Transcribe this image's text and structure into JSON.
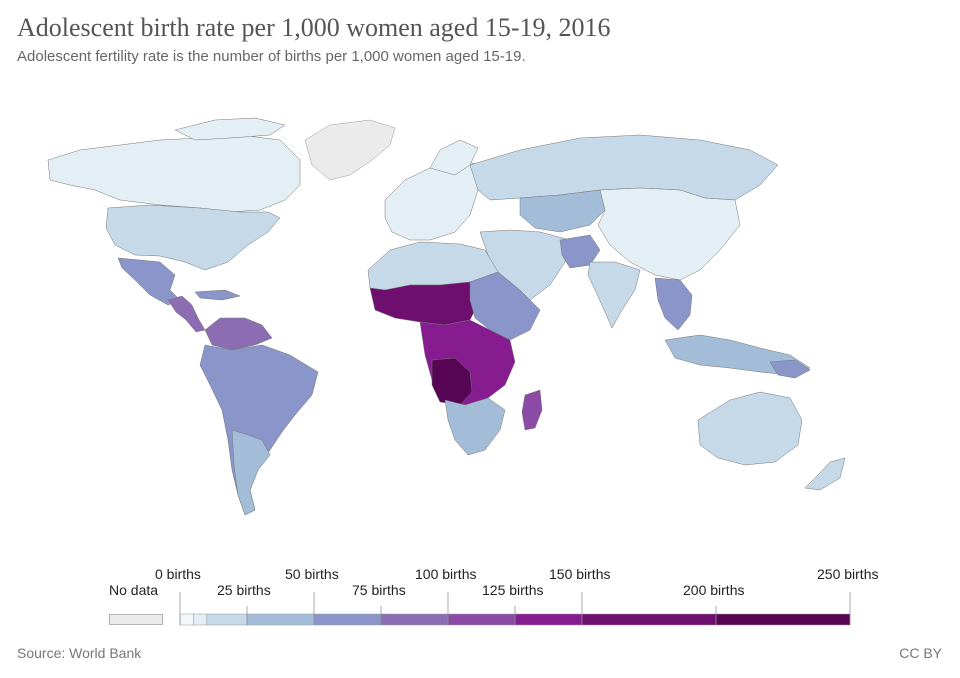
{
  "header": {
    "title": "Adolescent birth rate per 1,000 women aged 15-19, 2016",
    "subtitle": "Adolescent fertility rate is the number of births per 1,000 women aged 15-19."
  },
  "legend": {
    "no_data_label": "No data",
    "no_data_color": "#ebebeb",
    "stops": [
      0,
      5,
      10,
      25,
      50,
      75,
      100,
      125,
      150,
      200,
      250
    ],
    "colors": [
      "#f3f8fb",
      "#e3eef5",
      "#c6d9e8",
      "#a3bdd8",
      "#8a95c9",
      "#8c6db3",
      "#8a4aa6",
      "#861c8f",
      "#6e0e6e",
      "#560654"
    ],
    "labels": {
      "b0": "0 births",
      "b25": "25 births",
      "b50": "50 births",
      "b75": "75 births",
      "b100": "100 births",
      "b125": "125 births",
      "b150": "150 births",
      "b200": "200 births",
      "b250": "250 births"
    }
  },
  "footer": {
    "source": "Source: World Bank",
    "license": "CC BY"
  }
}
